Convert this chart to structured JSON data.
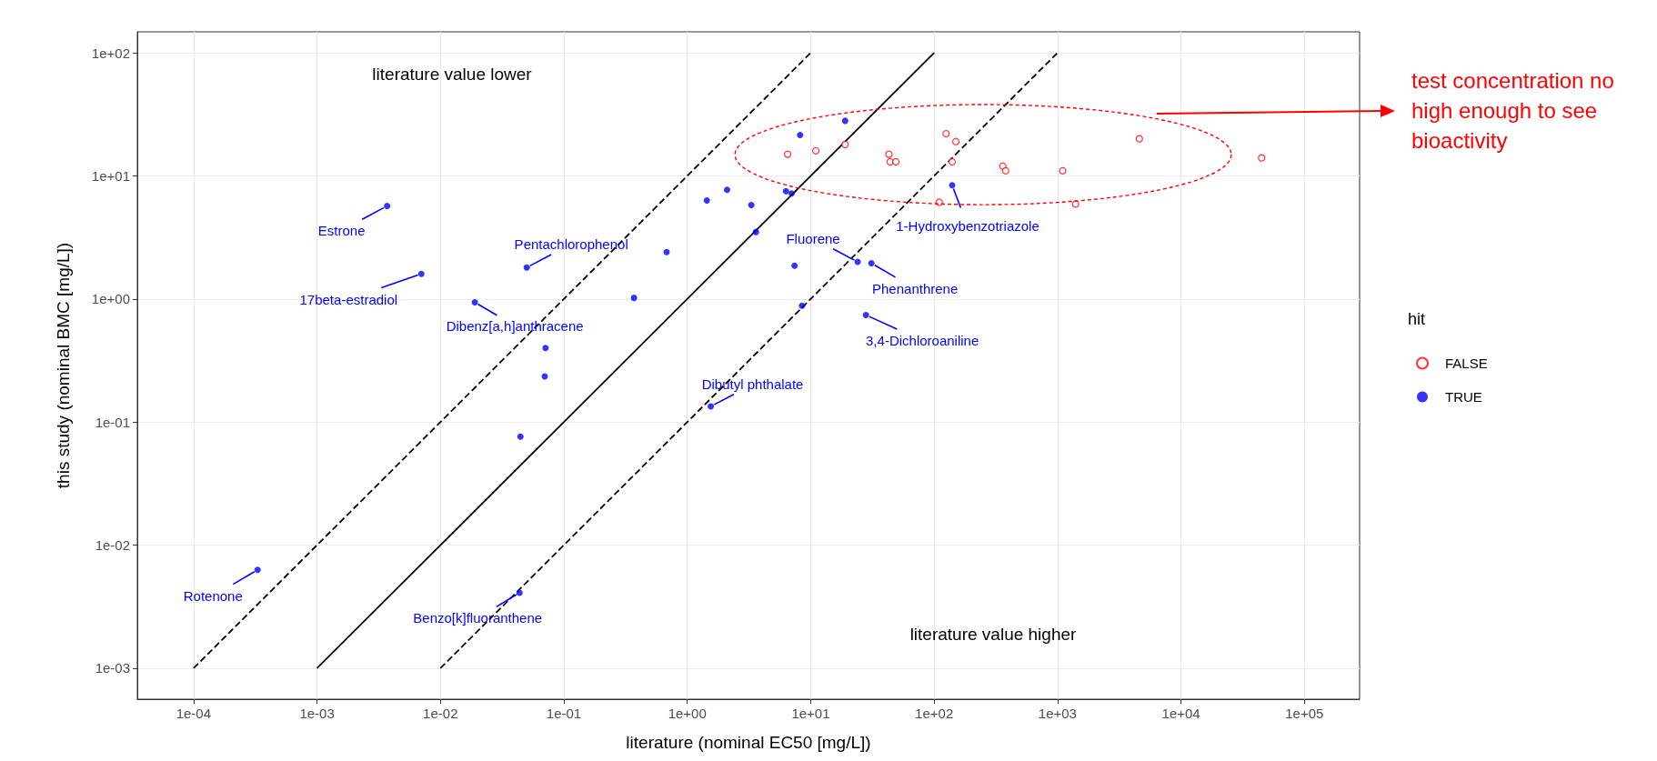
{
  "chart_data": {
    "type": "scatter",
    "xlabel": "literature (nominal EC50 [mg/L])",
    "ylabel": "this study (nominal BMC [mg/L])",
    "legend_title": "hit",
    "legend": "right",
    "log": "xy",
    "grid": true,
    "marker": "circle",
    "xlim": [
      3.5e-05,
      280000
    ],
    "ylim": [
      0.00056,
      148
    ],
    "xticks": [
      {
        "value": 0.0001,
        "label": "1e-04"
      },
      {
        "value": 0.001,
        "label": "1e-03"
      },
      {
        "value": 0.01,
        "label": "1e-02"
      },
      {
        "value": 0.1,
        "label": "1e-01"
      },
      {
        "value": 1,
        "label": "1e+00"
      },
      {
        "value": 10,
        "label": "1e+01"
      },
      {
        "value": 100,
        "label": "1e+02"
      },
      {
        "value": 1000,
        "label": "1e+03"
      },
      {
        "value": 10000,
        "label": "1e+04"
      },
      {
        "value": 100000,
        "label": "1e+05"
      }
    ],
    "yticks": [
      {
        "value": 0.001,
        "label": "1e-03"
      },
      {
        "value": 0.01,
        "label": "1e-02"
      },
      {
        "value": 0.1,
        "label": "1e-01"
      },
      {
        "value": 1,
        "label": "1e+00"
      },
      {
        "value": 10,
        "label": "1e+01"
      },
      {
        "value": 100,
        "label": "1e+02"
      }
    ],
    "series": [
      {
        "name": "FALSE",
        "color": "#ff0000",
        "x": [
          6.5,
          11,
          19,
          125,
          150,
          43,
          44,
          49,
          140,
          360,
          380,
          1100,
          4600,
          45000,
          110,
          1400
        ],
        "values": [
          15,
          16,
          18,
          22,
          19,
          15,
          13,
          13,
          13,
          12,
          11,
          11,
          20,
          14,
          6.1,
          5.9
        ]
      },
      {
        "name": "TRUE",
        "color": "#0000ff",
        "x": [
          0.00033,
          0.0037,
          0.007,
          0.019,
          0.05,
          0.071,
          0.07,
          0.0445,
          0.0437,
          0.37,
          0.68,
          1.55,
          1.44,
          2.1,
          3.3,
          3.6,
          6.3,
          7.0,
          7.4,
          8.5,
          8.2,
          19,
          140,
          24,
          31,
          28
        ],
        "values": [
          0.0063,
          5.7,
          1.6,
          0.94,
          1.8,
          0.4,
          0.235,
          0.076,
          0.0041,
          1.02,
          2.4,
          0.134,
          6.3,
          7.7,
          5.8,
          3.5,
          7.5,
          7.2,
          1.86,
          0.88,
          21.5,
          28,
          8.4,
          2.0,
          1.95,
          0.74
        ]
      },
      {
        "type": "line",
        "color": "#000000",
        "line_style": "solid",
        "marker": "none",
        "x": [
          0.001,
          100
        ],
        "values": [
          0.001,
          100
        ]
      },
      {
        "type": "line",
        "color": "#000000",
        "line_style": "dashed",
        "marker": "none",
        "x": [
          0.0001,
          10
        ],
        "values": [
          0.001,
          100
        ]
      },
      {
        "type": "line",
        "color": "#000000",
        "line_style": "dashed",
        "marker": "none",
        "x": [
          0.01,
          1000
        ],
        "values": [
          0.001,
          100
        ]
      }
    ],
    "annotations": [
      {
        "text": "Rotenone",
        "x": 0.00033,
        "y": 0.0063
      },
      {
        "text": "Estrone",
        "x": 0.0037,
        "y": 5.7
      },
      {
        "text": "17beta-estradiol",
        "x": 0.007,
        "y": 1.6
      },
      {
        "text": "Dibenz[a,h]anthracene",
        "x": 0.019,
        "y": 0.94
      },
      {
        "text": "Pentachlorophenol",
        "x": 0.05,
        "y": 1.8
      },
      {
        "text": "Benzo[k]fluoranthene",
        "x": 0.0437,
        "y": 0.0041
      },
      {
        "text": "Dibutyl phthalate",
        "x": 1.55,
        "y": 0.134
      },
      {
        "text": "Fluorene",
        "x": 24,
        "y": 2.0
      },
      {
        "text": "Phenanthrene",
        "x": 31,
        "y": 1.95
      },
      {
        "text": "3,4-Dichloroaniline",
        "x": 28,
        "y": 0.74
      },
      {
        "text": "1-Hydroxybenzotriazole",
        "x": 140,
        "y": 8.4
      },
      "literature value lower",
      "literature value higher",
      "test concentration no high enough to see bioactivity"
    ]
  }
}
